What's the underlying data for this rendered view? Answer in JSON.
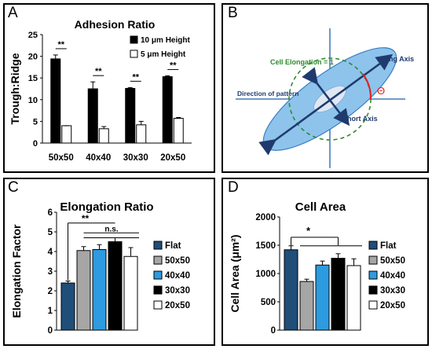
{
  "panel_labels": [
    "A",
    "B",
    "C",
    "D"
  ],
  "chart_data": [
    {
      "panel": "A",
      "type": "bar",
      "title": "Adhesion Ratio",
      "ylabel": "Trough:Ridge",
      "xlabel": "",
      "ylim": [
        0,
        25
      ],
      "yticks": [
        "0",
        "5",
        "10",
        "15",
        "20",
        "25"
      ],
      "categories": [
        "50x50",
        "40x40",
        "30x30",
        "20x50"
      ],
      "series": [
        {
          "name": "10 μm Height",
          "color": "#000000",
          "values": [
            19.4,
            12.5,
            12.6,
            15.3
          ],
          "errors": [
            0.9,
            1.6,
            0.2,
            0.2
          ]
        },
        {
          "name": "5 μm Height",
          "color": "#ffffff",
          "values": [
            4.0,
            3.3,
            4.2,
            5.7
          ],
          "errors": [
            0.0,
            0.5,
            0.8,
            0.2
          ]
        }
      ],
      "significance": [
        "**",
        "**",
        "**",
        "**"
      ],
      "legend_position": "top-right",
      "grid": false
    },
    {
      "panel": "C",
      "type": "bar",
      "title": "Elongation Ratio",
      "ylabel": "Elongation Factor",
      "xlabel": "",
      "ylim": [
        0,
        6
      ],
      "yticks": [
        "0",
        "1",
        "2",
        "3",
        "4",
        "5",
        "6"
      ],
      "categories": [
        "Flat",
        "50x50",
        "40x40",
        "30x30",
        "20x50"
      ],
      "colors": [
        "#1f4e79",
        "#a6a6a6",
        "#2e9be0",
        "#000000",
        "#ffffff"
      ],
      "values": [
        2.4,
        4.05,
        4.1,
        4.5,
        3.75
      ],
      "errors": [
        0.1,
        0.2,
        0.25,
        0.2,
        0.45
      ],
      "significance_labels": [
        "**",
        "n.s."
      ],
      "legend_position": "right",
      "grid": false
    },
    {
      "panel": "D",
      "type": "bar",
      "title": "Cell Area",
      "ylabel": "Cell Area (μm²)",
      "xlabel": "",
      "ylim": [
        0,
        2000
      ],
      "yticks": [
        "0",
        "500",
        "1000",
        "1500",
        "2000"
      ],
      "categories": [
        "Flat",
        "50x50",
        "40x40",
        "30x30",
        "20x50"
      ],
      "colors": [
        "#1f4e79",
        "#a6a6a6",
        "#2e9be0",
        "#000000",
        "#ffffff"
      ],
      "values": [
        1420,
        860,
        1150,
        1270,
        1140
      ],
      "errors": [
        70,
        40,
        70,
        80,
        120
      ],
      "significance_labels": [
        "*"
      ],
      "legend_position": "right",
      "grid": false
    }
  ],
  "diagram_b": {
    "cell_elongation_label": "Cell Elongation = 1",
    "long_axis_label": "Long Axis",
    "short_axis_label": "Short Axis",
    "direction_label": "Direction of pattern",
    "angle_symbol": "Θ",
    "colors": {
      "cell_fill": "#8ec3ec",
      "cell_stroke": "#3a7fc4",
      "nucleus": "#dfe7f3",
      "arrow": "#1f3b6e",
      "circle": "#2e8b2e",
      "angle": "#e02020",
      "axis": "#1f5fa8"
    }
  }
}
